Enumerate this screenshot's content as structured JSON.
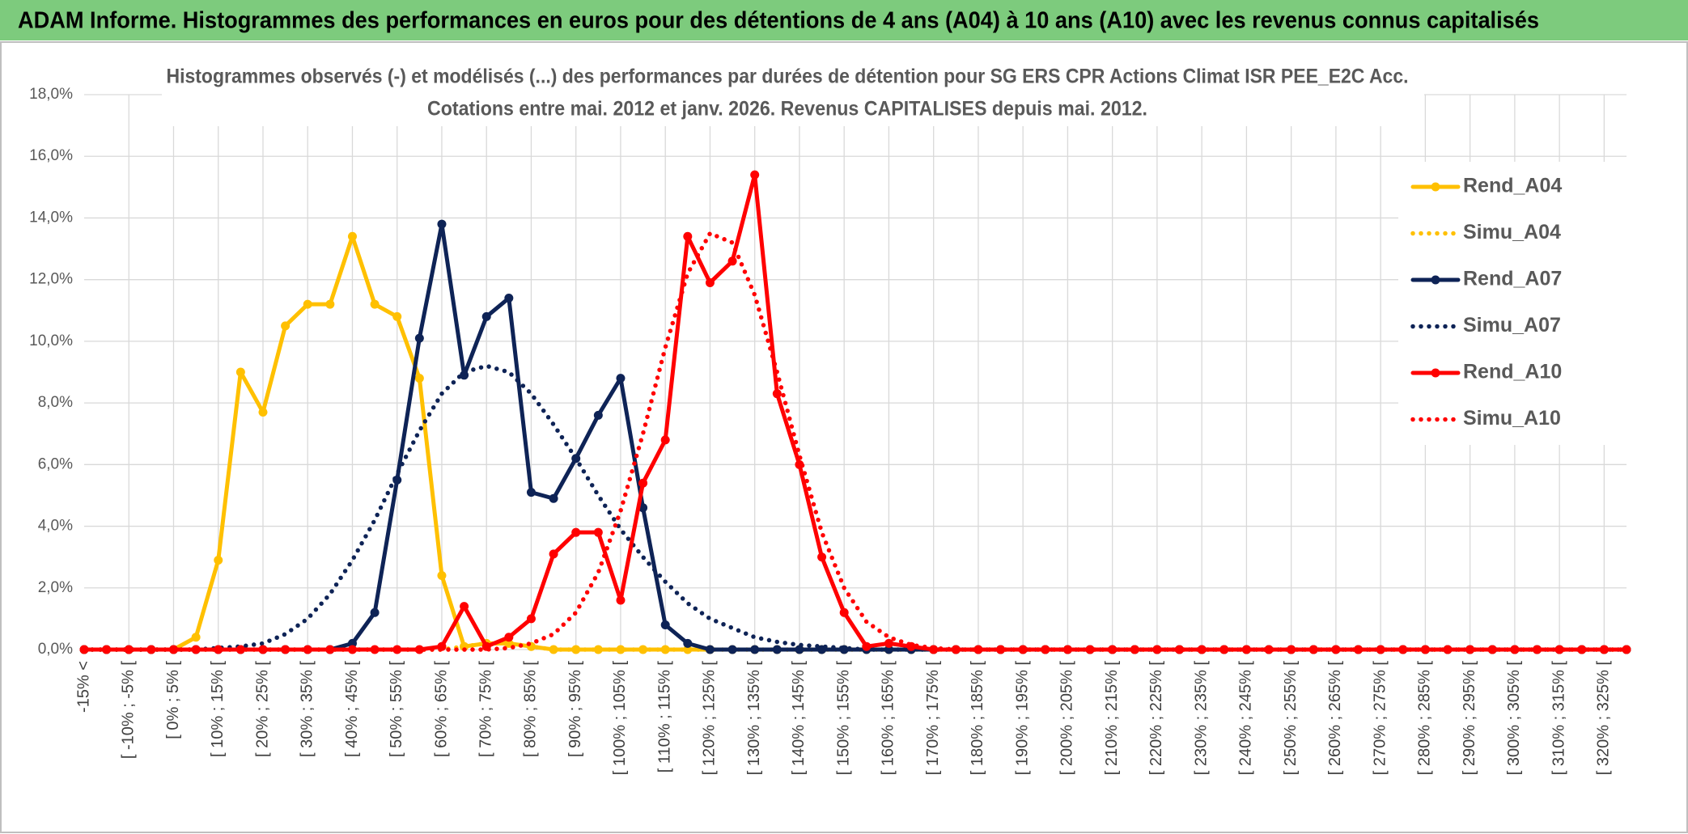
{
  "chart_data": {
    "type": "line",
    "header": "ADAM Informe. Histogrammes des performances en euros pour des détentions de 4 ans (A04) à 10 ans (A10) avec les revenus connus capitalisés",
    "title": "Histogrammes observés (-) et modélisés (...) des performances par durées de détention pour SG ERS CPR Actions Climat ISR PEE_E2C Acc.",
    "subtitle": "Cotations entre mai. 2012 et janv. 2026. Revenus CAPITALISES depuis mai. 2012.",
    "categories": [
      "-15% <",
      null,
      "[ -10% ; -5% [",
      null,
      "[ 0% ; 5% [",
      null,
      "[ 10% ; 15% [",
      null,
      "[ 20% ; 25% [",
      null,
      "[ 30% ; 35% [",
      null,
      "[ 40% ; 45% [",
      null,
      "[ 50% ; 55% [",
      null,
      "[ 60% ; 65% [",
      null,
      "[ 70% ; 75% [",
      null,
      "[ 80% ; 85% [",
      null,
      "[ 90% ; 95% [",
      null,
      "[ 100% ; 105% [",
      null,
      "[ 110% ; 115% [",
      null,
      "[ 120% ; 125% [",
      null,
      "[ 130% ; 135% [",
      null,
      "[ 140% ; 145% [",
      null,
      "[ 150% ; 155% [",
      null,
      "[ 160% ; 165% [",
      null,
      "[ 170% ; 175% [",
      null,
      "[ 180% ; 185% [",
      null,
      "[ 190% ; 195% [",
      null,
      "[ 200% ; 205% [",
      null,
      "[ 210% ; 215% [",
      null,
      "[ 220% ; 225% [",
      null,
      "[ 230% ; 235% [",
      null,
      "[ 240% ; 245% [",
      null,
      "[ 250% ; 255% [",
      null,
      "[ 260% ; 265% [",
      null,
      "[ 270% ; 275% [",
      null,
      "[ 280% ; 285% [",
      null,
      "[ 290% ; 295% [",
      null,
      "[ 300% ; 305% [",
      null,
      "[ 310% ; 315% [",
      null,
      "[ 320% ; 325% [",
      null
    ],
    "series": [
      {
        "name": "Rend_A04",
        "color": "#ffc000",
        "line_style": "solid",
        "markers": true,
        "values": [
          0,
          0,
          0,
          0,
          0,
          0.4,
          2.9,
          9.0,
          7.7,
          10.5,
          11.2,
          11.2,
          13.4,
          11.2,
          10.8,
          8.8,
          2.4,
          0.1,
          0.2,
          0.2,
          0.1,
          0,
          0,
          0,
          0,
          0,
          0,
          0,
          0,
          0,
          0,
          0,
          0,
          0,
          0,
          0,
          0,
          0,
          0,
          0,
          0,
          0,
          0,
          0,
          0,
          0,
          0,
          0,
          0,
          0,
          0,
          0,
          0,
          0,
          0,
          0,
          0,
          0,
          0,
          0,
          0,
          0,
          0,
          0,
          0,
          0,
          0,
          0,
          0,
          0
        ]
      },
      {
        "name": "Simu_A04",
        "color": "#ffc000",
        "line_style": "dotted",
        "markers": false,
        "values": [
          0,
          0,
          0,
          0,
          0,
          0,
          0,
          0,
          0,
          0,
          0,
          0,
          0,
          0,
          0,
          0,
          0,
          0.1,
          0.2,
          0.2,
          0.1,
          0,
          0,
          0,
          0,
          0,
          0,
          0,
          0,
          0,
          0,
          0,
          0,
          0,
          0,
          0,
          0,
          0,
          0,
          0,
          0,
          0,
          0,
          0,
          0,
          0,
          0,
          0,
          0,
          0,
          0,
          0,
          0,
          0,
          0,
          0,
          0,
          0,
          0,
          0,
          0,
          0,
          0,
          0,
          0,
          0,
          0,
          0,
          0,
          0
        ]
      },
      {
        "name": "Rend_A07",
        "color": "#0e2356",
        "line_style": "solid",
        "markers": true,
        "values": [
          0,
          0,
          0,
          0,
          0,
          0,
          0,
          0,
          0,
          0,
          0,
          0,
          0.2,
          1.2,
          5.5,
          10.1,
          13.8,
          8.9,
          10.8,
          11.4,
          5.1,
          4.9,
          6.2,
          7.6,
          8.8,
          4.6,
          0.8,
          0.2,
          0,
          0,
          0,
          0,
          0,
          0,
          0,
          0,
          0,
          0,
          0,
          0,
          0,
          0,
          0,
          0,
          0,
          0,
          0,
          0,
          0,
          0,
          0,
          0,
          0,
          0,
          0,
          0,
          0,
          0,
          0,
          0,
          0,
          0,
          0,
          0,
          0,
          0,
          0,
          0,
          0,
          0
        ]
      },
      {
        "name": "Simu_A07",
        "color": "#0e2356",
        "line_style": "dotted",
        "markers": false,
        "values": [
          0,
          0,
          0,
          0,
          0,
          0,
          0.05,
          0.1,
          0.2,
          0.5,
          1.0,
          1.8,
          2.9,
          4.2,
          5.7,
          7.1,
          8.3,
          9.0,
          9.2,
          9.0,
          8.3,
          7.3,
          6.2,
          5.0,
          3.9,
          3.0,
          2.2,
          1.5,
          1.0,
          0.7,
          0.4,
          0.25,
          0.15,
          0.1,
          0.05,
          0,
          0,
          0,
          0,
          0,
          0,
          0,
          0,
          0,
          0,
          0,
          0,
          0,
          0,
          0,
          0,
          0,
          0,
          0,
          0,
          0,
          0,
          0,
          0,
          0,
          0,
          0,
          0,
          0,
          0,
          0,
          0,
          0,
          0,
          0
        ]
      },
      {
        "name": "Rend_A10",
        "color": "#ff0000",
        "line_style": "solid",
        "markers": true,
        "values": [
          0,
          0,
          0,
          0,
          0,
          0,
          0,
          0,
          0,
          0,
          0,
          0,
          0,
          0,
          0,
          0,
          0.1,
          1.4,
          0.1,
          0.4,
          1.0,
          3.1,
          3.8,
          3.8,
          1.6,
          5.4,
          6.8,
          13.4,
          11.9,
          12.6,
          15.4,
          8.3,
          6.0,
          3.0,
          1.2,
          0.1,
          0.2,
          0.1,
          0,
          0,
          0,
          0,
          0,
          0,
          0,
          0,
          0,
          0,
          0,
          0,
          0,
          0,
          0,
          0,
          0,
          0,
          0,
          0,
          0,
          0,
          0,
          0,
          0,
          0,
          0,
          0,
          0,
          0,
          0,
          0
        ]
      },
      {
        "name": "Simu_A10",
        "color": "#ff0000",
        "line_style": "dotted",
        "markers": false,
        "values": [
          0,
          0,
          0,
          0,
          0,
          0,
          0,
          0,
          0,
          0,
          0,
          0,
          0,
          0,
          0,
          0,
          0,
          0,
          0,
          0.05,
          0.2,
          0.5,
          1.2,
          2.5,
          4.5,
          7.0,
          9.8,
          12.2,
          13.5,
          13.2,
          11.5,
          9.0,
          6.3,
          3.8,
          2.0,
          0.9,
          0.4,
          0.15,
          0.05,
          0,
          0,
          0,
          0,
          0,
          0,
          0,
          0,
          0,
          0,
          0,
          0,
          0,
          0,
          0,
          0,
          0,
          0,
          0,
          0,
          0,
          0,
          0,
          0,
          0,
          0,
          0,
          0,
          0,
          0,
          0
        ]
      }
    ],
    "ylim": [
      0,
      18
    ],
    "yticks": [
      {
        "value": 0,
        "label": "0,0%"
      },
      {
        "value": 2,
        "label": "2,0%"
      },
      {
        "value": 4,
        "label": "4,0%"
      },
      {
        "value": 6,
        "label": "6,0%"
      },
      {
        "value": 8,
        "label": "8,0%"
      },
      {
        "value": 10,
        "label": "10,0%"
      },
      {
        "value": 12,
        "label": "12,0%"
      },
      {
        "value": 14,
        "label": "14,0%"
      },
      {
        "value": 16,
        "label": "16,0%"
      },
      {
        "value": 18,
        "label": "18,0%"
      }
    ],
    "grid": true,
    "legend": "right"
  }
}
